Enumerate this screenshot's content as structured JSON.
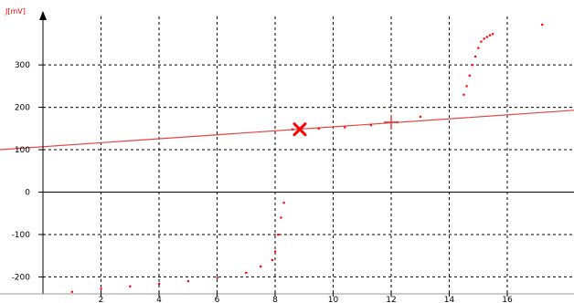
{
  "chart_data": {
    "type": "scatter",
    "ylabel": "J[mV]",
    "xlim": [
      0,
      18.3
    ],
    "ylim": [
      -240,
      410
    ],
    "x_ticks": [
      2,
      4,
      6,
      8,
      10,
      12,
      14,
      16
    ],
    "y_ticks": [
      300,
      200,
      100,
      0,
      -100,
      -200
    ],
    "grid": true,
    "colors": {
      "points": "#ff0000",
      "line": "#e34545",
      "axes": "#000000",
      "grid": "#000000"
    },
    "points": [
      [
        1.0,
        -235
      ],
      [
        2.0,
        -228
      ],
      [
        3.0,
        -222
      ],
      [
        4.0,
        -216
      ],
      [
        5.0,
        -210
      ],
      [
        6.0,
        -202
      ],
      [
        7.0,
        -190
      ],
      [
        7.5,
        -175
      ],
      [
        7.9,
        -160
      ],
      [
        8.0,
        -140
      ],
      [
        8.1,
        -100
      ],
      [
        8.2,
        -60
      ],
      [
        8.3,
        -25
      ],
      [
        8.6,
        148
      ],
      [
        9.5,
        150
      ],
      [
        10.4,
        153
      ],
      [
        11.3,
        158
      ],
      [
        12.2,
        165
      ],
      [
        13.0,
        178
      ],
      [
        14.5,
        230
      ],
      [
        14.6,
        250
      ],
      [
        14.7,
        275
      ],
      [
        14.8,
        300
      ],
      [
        14.9,
        320
      ],
      [
        15.0,
        340
      ],
      [
        15.1,
        355
      ],
      [
        15.2,
        362
      ],
      [
        15.3,
        366
      ],
      [
        15.4,
        370
      ],
      [
        15.5,
        373
      ],
      [
        17.2,
        395
      ]
    ],
    "fit_line": {
      "x": [
        0,
        18.3
      ],
      "y": [
        107,
        193
      ]
    },
    "markers": [
      {
        "symbol": "x",
        "x": 8.85,
        "y": 148
      },
      {
        "symbol": "+",
        "x": 12.0,
        "y": 165
      }
    ]
  }
}
